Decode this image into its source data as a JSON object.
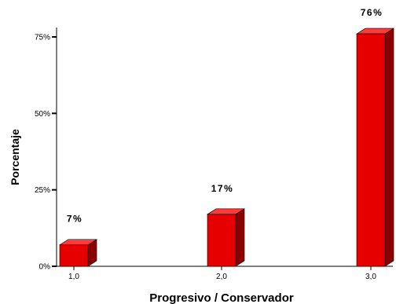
{
  "chart_data": {
    "type": "bar",
    "categories": [
      "1,0",
      "2,0",
      "3,0"
    ],
    "values": [
      7,
      17,
      76
    ],
    "value_labels": [
      "7%",
      "17%",
      "76%"
    ],
    "xlabel": "Progresivo / Conservador",
    "ylabel": "Porcentaje",
    "ylim": [
      0,
      75
    ],
    "yticks": [
      0,
      25,
      50,
      75
    ],
    "ytick_labels": [
      "0%",
      "25%",
      "50%",
      "75%"
    ],
    "bar_style": "3d",
    "grid": false,
    "colors": {
      "front": "#e60000",
      "top": "#ff3a3a",
      "side": "#8c0000"
    }
  }
}
